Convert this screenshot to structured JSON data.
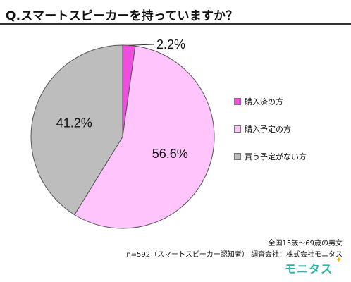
{
  "title": "Q.スマートスピーカーを持っていますか？",
  "chart_data": {
    "type": "pie",
    "title": "Q.スマートスピーカーを持っていますか？",
    "slices": [
      {
        "label": "購入済の方",
        "value": 2.2,
        "display": "2.2%",
        "color": "#f04ce0"
      },
      {
        "label": "購入予定の方",
        "value": 56.6,
        "display": "56.6%",
        "color": "#ffc4fb"
      },
      {
        "label": "買う予定がない方",
        "value": 41.2,
        "display": "41.2%",
        "color": "#bdbdbd"
      }
    ],
    "legend_position": "right",
    "start_angle": "12 o'clock, clockwise"
  },
  "legend": {
    "items": [
      {
        "label": "購入済の方",
        "color": "#f04ce0"
      },
      {
        "label": "購入予定の方",
        "color": "#ffc4fb"
      },
      {
        "label": "買う予定がない方",
        "color": "#bdbdbd"
      }
    ]
  },
  "footnotes": {
    "line1": "全国15歳～69歳の男女",
    "line2": "n=592（スマートスピーカー認知者）  調査会社：株式会社モニタス"
  },
  "brand": {
    "name": "モニタス",
    "spark": "✦",
    "color": "#2bb5a6"
  }
}
